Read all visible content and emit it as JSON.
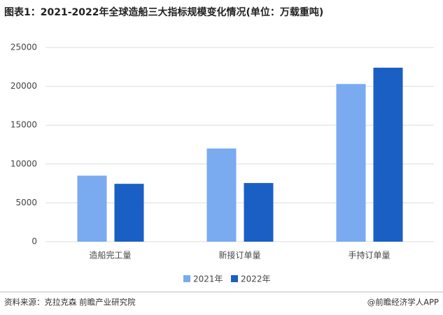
{
  "chart_data": {
    "type": "bar",
    "title": "图表1：2021-2022年全球造船三大指标规模变化情况(单位：万载重吨)",
    "categories": [
      "造船完工量",
      "新接订单量",
      "手持订单量"
    ],
    "series": [
      {
        "name": "2021年",
        "color": "#7aaaf0",
        "values": [
          8500,
          12000,
          20300
        ]
      },
      {
        "name": "2022年",
        "color": "#1a5fc4",
        "values": [
          7450,
          7550,
          22400
        ]
      }
    ],
    "ylim": [
      0,
      25000
    ],
    "yticks": [
      0,
      5000,
      10000,
      15000,
      20000,
      25000
    ],
    "grid": true,
    "source": "资料来源：克拉克森 前瞻产业研究院",
    "credit": "@前瞻经济学人APP"
  }
}
